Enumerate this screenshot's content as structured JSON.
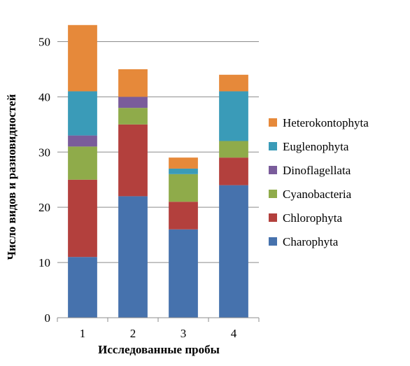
{
  "chart_data": {
    "type": "bar",
    "stacked": true,
    "categories": [
      "1",
      "2",
      "3",
      "4"
    ],
    "series": [
      {
        "name": "Charophyta",
        "values": [
          11,
          22,
          16,
          24
        ],
        "color": "#4672AD"
      },
      {
        "name": "Chlorophyta",
        "values": [
          14,
          13,
          5,
          5
        ],
        "color": "#B3403D"
      },
      {
        "name": "Cyanobacteria",
        "values": [
          6,
          3,
          5,
          3
        ],
        "color": "#8FAB4A"
      },
      {
        "name": "Dinoflagellata",
        "values": [
          2,
          2,
          0,
          0
        ],
        "color": "#7A5C9B"
      },
      {
        "name": "Euglenophyta",
        "values": [
          8,
          0,
          1,
          9
        ],
        "color": "#3A9BB8"
      },
      {
        "name": "Heterokontophyta",
        "values": [
          12,
          5,
          2,
          3
        ],
        "color": "#E6893A"
      }
    ],
    "xlabel": "Исследованные пробы",
    "ylabel": "Число видов и разновидностей",
    "ylim": [
      0,
      55
    ],
    "yticks": [
      0,
      10,
      20,
      30,
      40,
      50
    ],
    "grid": true,
    "legend": "right"
  }
}
